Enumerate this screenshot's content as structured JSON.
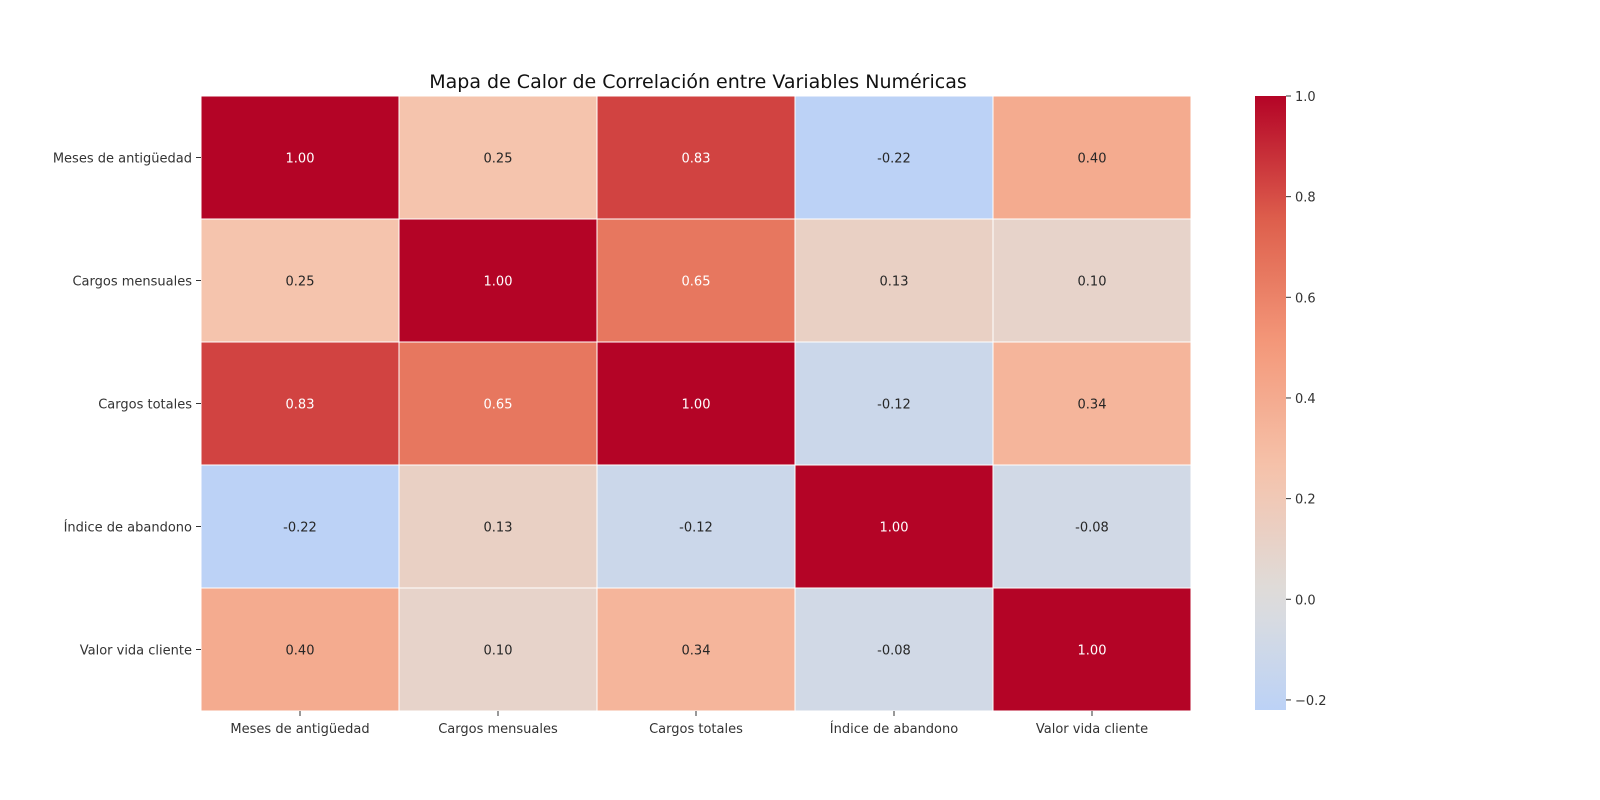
{
  "chart_data": {
    "type": "heatmap",
    "title": "Mapa de Calor de Correlación entre Variables Numéricas",
    "xlabel": "",
    "ylabel": "",
    "x_categories": [
      "Meses de antigüedad",
      "Cargos mensuales",
      "Cargos totales",
      "Índice de abandono",
      "Valor vida cliente"
    ],
    "y_categories": [
      "Meses de antigüedad",
      "Cargos mensuales",
      "Cargos totales",
      "Índice de abandono",
      "Valor vida cliente"
    ],
    "values": [
      [
        1.0,
        0.25,
        0.83,
        -0.22,
        0.4
      ],
      [
        0.25,
        1.0,
        0.65,
        0.13,
        0.1
      ],
      [
        0.83,
        0.65,
        1.0,
        -0.12,
        0.34
      ],
      [
        -0.22,
        0.13,
        -0.12,
        1.0,
        -0.08
      ],
      [
        0.4,
        0.1,
        0.34,
        -0.08,
        1.0
      ]
    ],
    "value_format": "2 decimals",
    "colormap": "coolwarm",
    "color_range": [
      -0.22,
      1.0
    ],
    "colorbar": {
      "position": "right",
      "ticks": [
        -0.2,
        0.0,
        0.2,
        0.4,
        0.6,
        0.8,
        1.0
      ],
      "tick_labels": [
        "−0.2",
        "0.0",
        "0.2",
        "0.4",
        "0.6",
        "0.8",
        "1.0"
      ]
    },
    "grid": false,
    "cell_border_color": "#ffffff",
    "annotation_colors": {
      "dark": "#262626",
      "light": "#ffffff"
    }
  }
}
